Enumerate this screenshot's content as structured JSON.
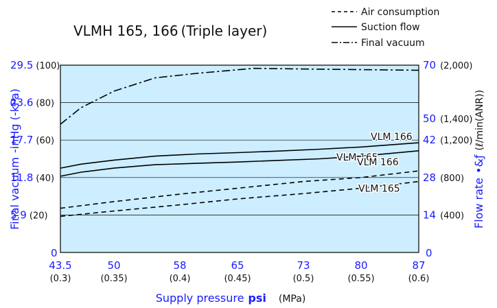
{
  "chart_data": {
    "type": "line",
    "title": "VLMH 165, 166 (Triple layer)",
    "x": [
      43.5,
      50,
      58,
      65,
      73,
      80,
      87
    ],
    "x_tick_labels": [
      "43.5",
      "50",
      "58",
      "65",
      "73",
      "80",
      "87"
    ],
    "x_tick_sublabels": [
      "(0.3)",
      "(0.35)",
      "(0.4)",
      "(0.45)",
      "(0.5)",
      "(0.55)",
      "(0.6)"
    ],
    "xlabel": "Supply pressure",
    "xlabel_unit": "psi",
    "xlabel_unit2": "(MPa)",
    "xlim": [
      43.5,
      87
    ],
    "ylabel_left": "Final vacuum",
    "ylabel_left_unit": "-inHg (-kPa)",
    "ylim_left": [
      0,
      29.5
    ],
    "left_ticks": [
      0,
      5.9,
      11.8,
      17.7,
      23.6,
      29.5
    ],
    "left_tick_labels": [
      "0",
      "5.9",
      "11.8",
      "17.7",
      "23.6",
      "29.5"
    ],
    "left_tick_sublabels": [
      "",
      "(20)",
      "(40)",
      "(60)",
      "(80)",
      "(100)"
    ],
    "ylabel_right": "Flow rate",
    "ylabel_right_unit": "(ℓ/min(ANR))",
    "ylim_right": [
      0,
      70
    ],
    "right_ticks": [
      0,
      14,
      28,
      42,
      50,
      70
    ],
    "right_tick_labels": [
      "0",
      "14",
      "28",
      "42",
      "50",
      "70"
    ],
    "right_tick_sublabels": [
      "",
      "(400)",
      "(800)",
      "(1,200)",
      "(1,400)",
      "(2,000)"
    ],
    "legend": [
      {
        "label": "Air consumption",
        "style": "dashed"
      },
      {
        "label": "Suction flow",
        "style": "solid"
      },
      {
        "label": "Final vacuum",
        "style": "dashdot"
      }
    ],
    "legend_position": "top-right",
    "background_color": "#cceeff",
    "axis_label_color": "#1a1aff",
    "grid": true,
    "series": [
      {
        "name": "Final vacuum",
        "axis": "left",
        "style": "dashdot",
        "x": [
          43.5,
          46,
          50,
          55,
          60,
          67,
          73,
          80,
          87
        ],
        "values": [
          20.2,
          22.8,
          25.4,
          27.5,
          28.2,
          29.0,
          28.9,
          28.8,
          28.7
        ]
      },
      {
        "name": "VLM 166",
        "group": "Suction flow",
        "axis": "right",
        "style": "solid",
        "x": [
          43.5,
          46,
          50,
          55,
          60,
          65,
          70,
          75,
          80,
          87
        ],
        "values": [
          31.5,
          33.0,
          34.5,
          36.0,
          36.8,
          37.3,
          37.9,
          38.6,
          39.4,
          41.0
        ]
      },
      {
        "name": "VLM 165",
        "group": "Suction flow",
        "axis": "right",
        "style": "solid",
        "x": [
          43.5,
          46,
          50,
          55,
          60,
          65,
          70,
          75,
          80,
          87
        ],
        "values": [
          28.5,
          30.0,
          31.5,
          32.8,
          33.3,
          33.8,
          34.4,
          35.0,
          36.0,
          38.0
        ]
      },
      {
        "name": "VLM 166",
        "group": "Air consumption",
        "axis": "right",
        "style": "dashed",
        "x": [
          43.5,
          50,
          58,
          65,
          73,
          80,
          87
        ],
        "values": [
          16.5,
          19.0,
          21.8,
          24.0,
          26.5,
          28.0,
          30.5
        ]
      },
      {
        "name": "VLM 165",
        "group": "Air consumption",
        "axis": "right",
        "style": "dashed",
        "x": [
          43.5,
          50,
          58,
          65,
          73,
          80,
          87
        ],
        "values": [
          13.5,
          15.5,
          17.8,
          20.0,
          22.0,
          24.0,
          26.5
        ]
      }
    ],
    "annotations": [
      {
        "text": "VLM 166",
        "series": 1
      },
      {
        "text": "VLM 165",
        "series": 2
      },
      {
        "text": "VLM 166",
        "series": 3
      },
      {
        "text": "VLM 165",
        "series": 4
      }
    ]
  }
}
